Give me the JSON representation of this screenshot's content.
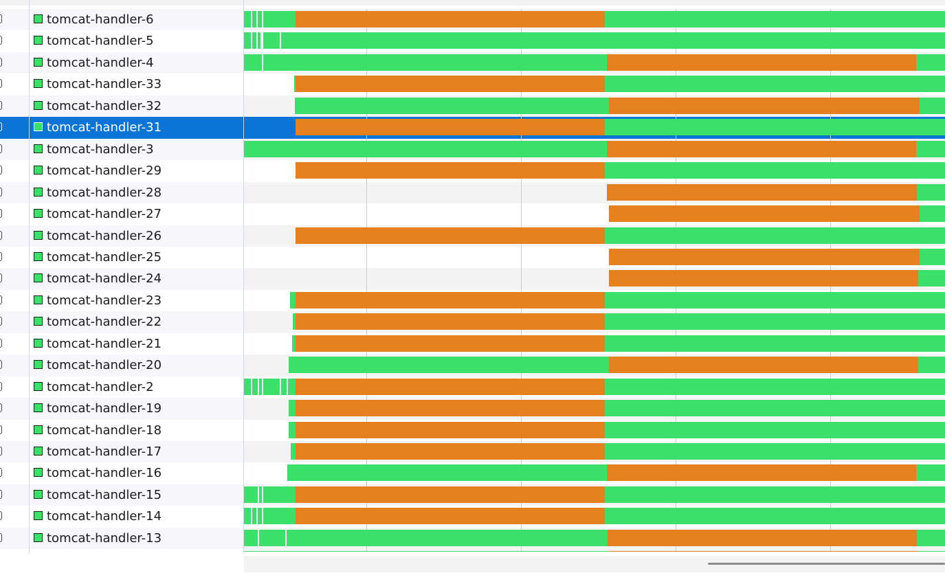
{
  "colors": {
    "running": "#3ae06a",
    "waiting": "#e5801f",
    "selection": "#0a75d6",
    "row_alt": "#f6f6fb",
    "timeline_alt": "#f3f3f3",
    "gridline": "#cccccc"
  },
  "icons": {
    "row_state": "green-square-thread-icon",
    "row_check": "checkbox-icon"
  },
  "selected_thread": "tomcat-handler-31",
  "threads": [
    {
      "name": "tomcat-handler-6"
    },
    {
      "name": "tomcat-handler-5"
    },
    {
      "name": "tomcat-handler-4"
    },
    {
      "name": "tomcat-handler-33"
    },
    {
      "name": "tomcat-handler-32"
    },
    {
      "name": "tomcat-handler-31"
    },
    {
      "name": "tomcat-handler-3"
    },
    {
      "name": "tomcat-handler-29"
    },
    {
      "name": "tomcat-handler-28"
    },
    {
      "name": "tomcat-handler-27"
    },
    {
      "name": "tomcat-handler-26"
    },
    {
      "name": "tomcat-handler-25"
    },
    {
      "name": "tomcat-handler-24"
    },
    {
      "name": "tomcat-handler-23"
    },
    {
      "name": "tomcat-handler-22"
    },
    {
      "name": "tomcat-handler-21"
    },
    {
      "name": "tomcat-handler-20"
    },
    {
      "name": "tomcat-handler-2"
    },
    {
      "name": "tomcat-handler-19"
    },
    {
      "name": "tomcat-handler-18"
    },
    {
      "name": "tomcat-handler-17"
    },
    {
      "name": "tomcat-handler-16"
    },
    {
      "name": "tomcat-handler-15"
    },
    {
      "name": "tomcat-handler-14"
    },
    {
      "name": "tomcat-handler-13"
    }
  ]
}
